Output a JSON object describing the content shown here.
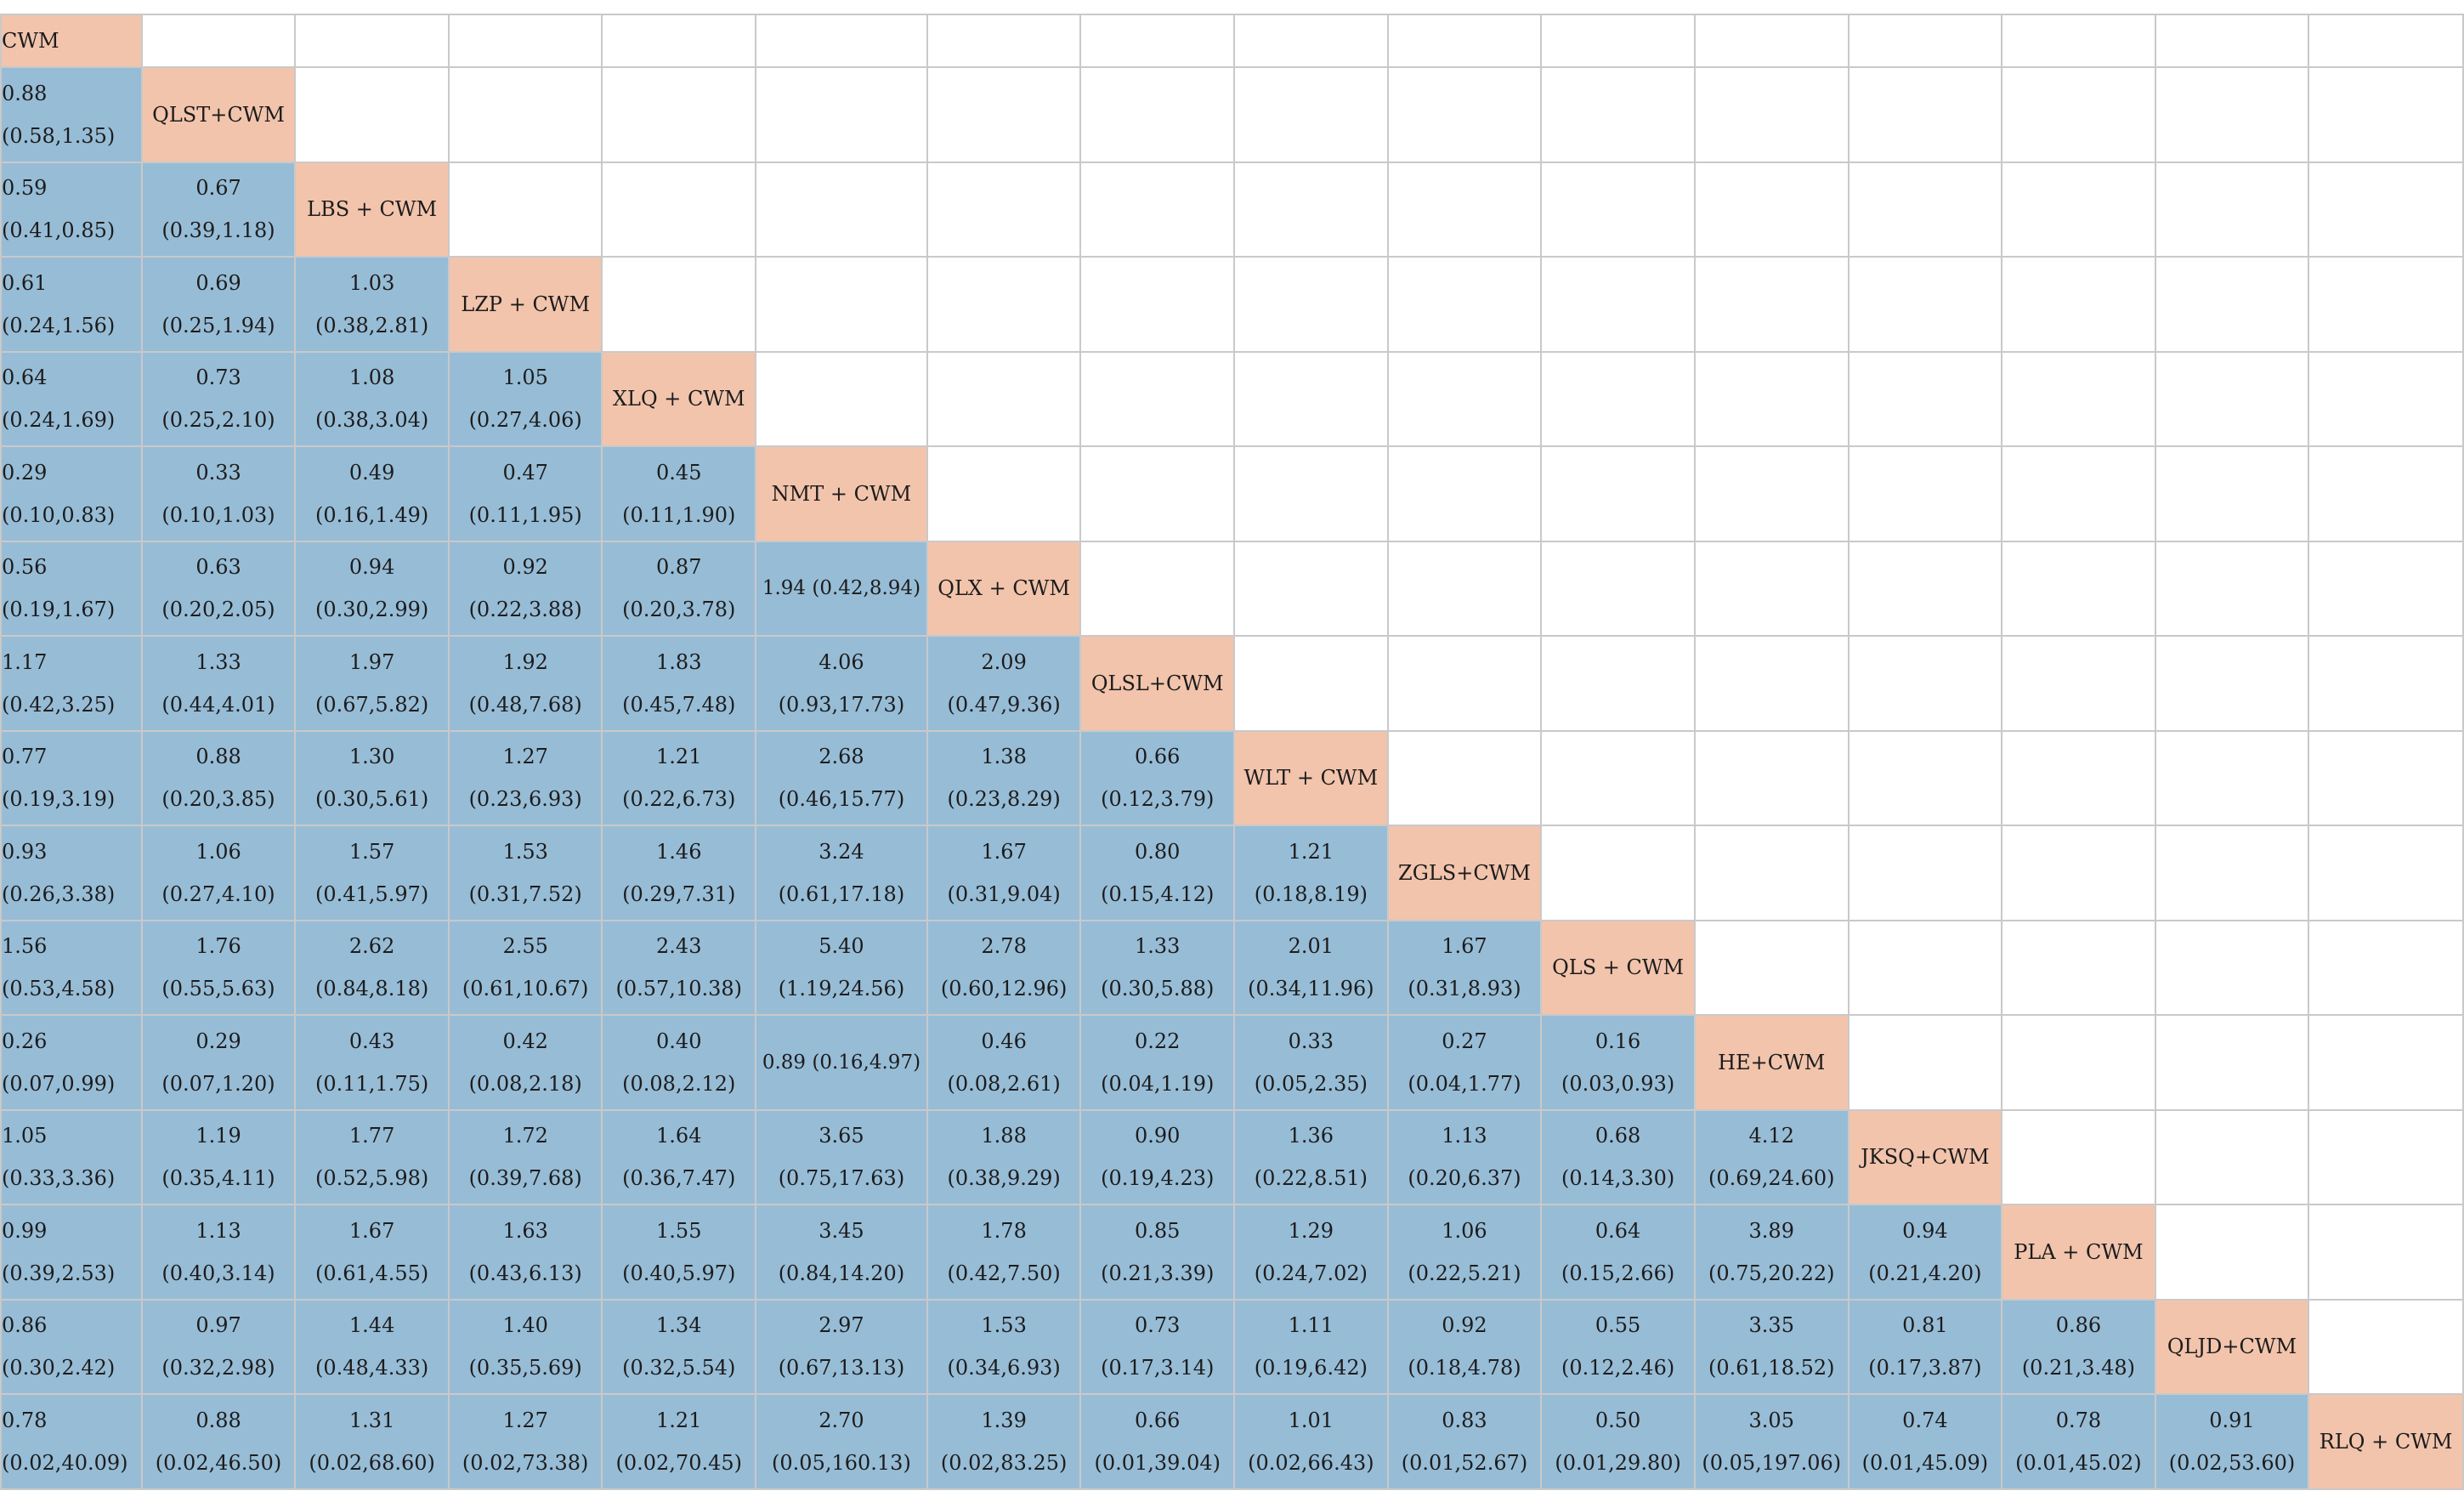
{
  "chart_data": {
    "type": "table",
    "treatments": [
      "CWM",
      "QLST+CWM",
      "LBS + CWM",
      "LZP + CWM",
      "XLQ + CWM",
      "NMT + CWM",
      "QLX + CWM",
      "QLSL+CWM",
      "WLT + CWM",
      "ZGLS+CWM",
      "QLS + CWM",
      "HE+CWM",
      "JKSQ+CWM",
      "PLA + CWM",
      "QLJD+CWM",
      "RLQ + CWM"
    ],
    "rows": [
      [],
      [
        [
          "0.88",
          "(0.58,1.35)"
        ]
      ],
      [
        [
          "0.59",
          "(0.41,0.85)"
        ],
        [
          "0.67",
          "(0.39,1.18)"
        ]
      ],
      [
        [
          "0.61",
          "(0.24,1.56)"
        ],
        [
          "0.69",
          "(0.25,1.94)"
        ],
        [
          "1.03",
          "(0.38,2.81)"
        ]
      ],
      [
        [
          "0.64",
          "(0.24,1.69)"
        ],
        [
          "0.73",
          "(0.25,2.10)"
        ],
        [
          "1.08",
          "(0.38,3.04)"
        ],
        [
          "1.05",
          "(0.27,4.06)"
        ]
      ],
      [
        [
          "0.29",
          "(0.10,0.83)"
        ],
        [
          "0.33",
          "(0.10,1.03)"
        ],
        [
          "0.49",
          "(0.16,1.49)"
        ],
        [
          "0.47",
          "(0.11,1.95)"
        ],
        [
          "0.45",
          "(0.11,1.90)"
        ]
      ],
      [
        [
          "0.56",
          "(0.19,1.67)"
        ],
        [
          "0.63",
          "(0.20,2.05)"
        ],
        [
          "0.94",
          "(0.30,2.99)"
        ],
        [
          "0.92",
          "(0.22,3.88)"
        ],
        [
          "0.87",
          "(0.20,3.78)"
        ],
        [
          "1.94 (0.42,8.94)"
        ]
      ],
      [
        [
          "1.17",
          "(0.42,3.25)"
        ],
        [
          "1.33",
          "(0.44,4.01)"
        ],
        [
          "1.97",
          "(0.67,5.82)"
        ],
        [
          "1.92",
          "(0.48,7.68)"
        ],
        [
          "1.83",
          "(0.45,7.48)"
        ],
        [
          "4.06",
          "(0.93,17.73)"
        ],
        [
          "2.09",
          "(0.47,9.36)"
        ]
      ],
      [
        [
          "0.77",
          "(0.19,3.19)"
        ],
        [
          "0.88",
          "(0.20,3.85)"
        ],
        [
          "1.30",
          "(0.30,5.61)"
        ],
        [
          "1.27",
          "(0.23,6.93)"
        ],
        [
          "1.21",
          "(0.22,6.73)"
        ],
        [
          "2.68",
          "(0.46,15.77)"
        ],
        [
          "1.38",
          "(0.23,8.29)"
        ],
        [
          "0.66",
          "(0.12,3.79)"
        ]
      ],
      [
        [
          "0.93",
          "(0.26,3.38)"
        ],
        [
          "1.06",
          "(0.27,4.10)"
        ],
        [
          "1.57",
          "(0.41,5.97)"
        ],
        [
          "1.53",
          "(0.31,7.52)"
        ],
        [
          "1.46",
          "(0.29,7.31)"
        ],
        [
          "3.24",
          "(0.61,17.18)"
        ],
        [
          "1.67",
          "(0.31,9.04)"
        ],
        [
          "0.80",
          "(0.15,4.12)"
        ],
        [
          "1.21",
          "(0.18,8.19)"
        ]
      ],
      [
        [
          "1.56",
          "(0.53,4.58)"
        ],
        [
          "1.76",
          "(0.55,5.63)"
        ],
        [
          "2.62",
          "(0.84,8.18)"
        ],
        [
          "2.55",
          "(0.61,10.67)"
        ],
        [
          "2.43",
          "(0.57,10.38)"
        ],
        [
          "5.40",
          "(1.19,24.56)"
        ],
        [
          "2.78",
          "(0.60,12.96)"
        ],
        [
          "1.33",
          "(0.30,5.88)"
        ],
        [
          "2.01",
          "(0.34,11.96)"
        ],
        [
          "1.67",
          "(0.31,8.93)"
        ]
      ],
      [
        [
          "0.26",
          "(0.07,0.99)"
        ],
        [
          "0.29",
          "(0.07,1.20)"
        ],
        [
          "0.43",
          "(0.11,1.75)"
        ],
        [
          "0.42",
          "(0.08,2.18)"
        ],
        [
          "0.40",
          "(0.08,2.12)"
        ],
        [
          "0.89 (0.16,4.97)"
        ],
        [
          "0.46",
          "(0.08,2.61)"
        ],
        [
          "0.22",
          "(0.04,1.19)"
        ],
        [
          "0.33",
          "(0.05,2.35)"
        ],
        [
          "0.27",
          "(0.04,1.77)"
        ],
        [
          "0.16",
          "(0.03,0.93)"
        ]
      ],
      [
        [
          "1.05",
          "(0.33,3.36)"
        ],
        [
          "1.19",
          "(0.35,4.11)"
        ],
        [
          "1.77",
          "(0.52,5.98)"
        ],
        [
          "1.72",
          "(0.39,7.68)"
        ],
        [
          "1.64",
          "(0.36,7.47)"
        ],
        [
          "3.65",
          "(0.75,17.63)"
        ],
        [
          "1.88",
          "(0.38,9.29)"
        ],
        [
          "0.90",
          "(0.19,4.23)"
        ],
        [
          "1.36",
          "(0.22,8.51)"
        ],
        [
          "1.13",
          "(0.20,6.37)"
        ],
        [
          "0.68",
          "(0.14,3.30)"
        ],
        [
          "4.12",
          "(0.69,24.60)"
        ]
      ],
      [
        [
          "0.99",
          "(0.39,2.53)"
        ],
        [
          "1.13",
          "(0.40,3.14)"
        ],
        [
          "1.67",
          "(0.61,4.55)"
        ],
        [
          "1.63",
          "(0.43,6.13)"
        ],
        [
          "1.55",
          "(0.40,5.97)"
        ],
        [
          "3.45",
          "(0.84,14.20)"
        ],
        [
          "1.78",
          "(0.42,7.50)"
        ],
        [
          "0.85",
          "(0.21,3.39)"
        ],
        [
          "1.29",
          "(0.24,7.02)"
        ],
        [
          "1.06",
          "(0.22,5.21)"
        ],
        [
          "0.64",
          "(0.15,2.66)"
        ],
        [
          "3.89",
          "(0.75,20.22)"
        ],
        [
          "0.94",
          "(0.21,4.20)"
        ]
      ],
      [
        [
          "0.86",
          "(0.30,2.42)"
        ],
        [
          "0.97",
          "(0.32,2.98)"
        ],
        [
          "1.44",
          "(0.48,4.33)"
        ],
        [
          "1.40",
          "(0.35,5.69)"
        ],
        [
          "1.34",
          "(0.32,5.54)"
        ],
        [
          "2.97",
          "(0.67,13.13)"
        ],
        [
          "1.53",
          "(0.34,6.93)"
        ],
        [
          "0.73",
          "(0.17,3.14)"
        ],
        [
          "1.11",
          "(0.19,6.42)"
        ],
        [
          "0.92",
          "(0.18,4.78)"
        ],
        [
          "0.55",
          "(0.12,2.46)"
        ],
        [
          "3.35",
          "(0.61,18.52)"
        ],
        [
          "0.81",
          "(0.17,3.87)"
        ],
        [
          "0.86",
          "(0.21,3.48)"
        ]
      ],
      [
        [
          "0.78",
          "(0.02,40.09)"
        ],
        [
          "0.88",
          "(0.02,46.50)"
        ],
        [
          "1.31",
          "(0.02,68.60)"
        ],
        [
          "1.27",
          "(0.02,73.38)"
        ],
        [
          "1.21",
          "(0.02,70.45)"
        ],
        [
          "2.70",
          "(0.05,160.13)"
        ],
        [
          "1.39",
          "(0.02,83.25)"
        ],
        [
          "0.66",
          "(0.01,39.04)"
        ],
        [
          "1.01",
          "(0.02,66.43)"
        ],
        [
          "0.83",
          "(0.01,52.67)"
        ],
        [
          "0.50",
          "(0.01,29.80)"
        ],
        [
          "3.05",
          "(0.05,197.06)"
        ],
        [
          "0.74",
          "(0.01,45.09)"
        ],
        [
          "0.78",
          "(0.01,45.02)"
        ],
        [
          "0.91",
          "(0.02,53.60)"
        ]
      ]
    ]
  },
  "colors": {
    "treatment_cell": "#f2c4ac",
    "comparison_cell": "#97bcd6",
    "empty_cell": "#ffffff",
    "grid_line": "#c9c9c9"
  }
}
